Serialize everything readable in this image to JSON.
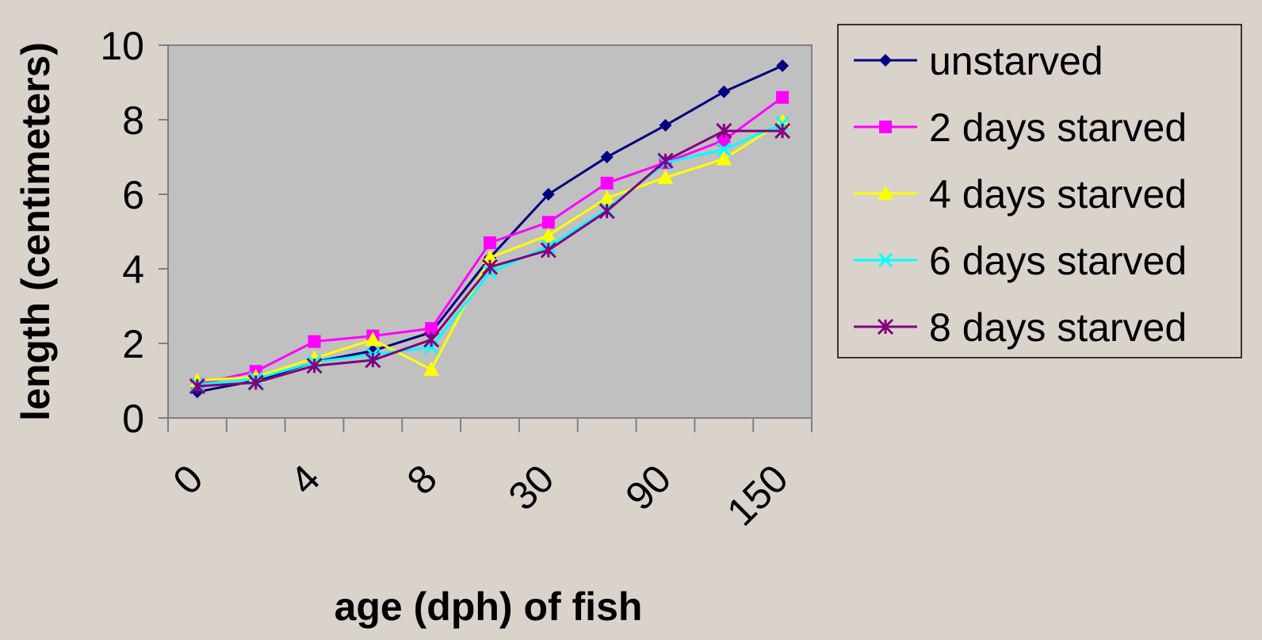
{
  "chart_data": {
    "type": "line",
    "xlabel": "age (dph) of fish",
    "ylabel": "length (centimeters)",
    "ylim": [
      0,
      10
    ],
    "yticks": [
      0,
      2,
      4,
      6,
      8,
      10
    ],
    "x_tick_labels": [
      "0",
      "4",
      "8",
      "30",
      "90",
      "150"
    ],
    "grid": false,
    "legend_position": "right",
    "plot_background": "#C0C0C0",
    "page_background": "#D9D3CC",
    "series": [
      {
        "name": "unstarved",
        "color": "#000080",
        "marker": "diamond",
        "values": [
          0.7,
          1.0,
          1.5,
          1.8,
          2.3,
          4.3,
          6.0,
          7.0,
          7.85,
          8.75,
          9.45
        ]
      },
      {
        "name": "2 days starved",
        "color": "#FF00FF",
        "marker": "square",
        "values": [
          0.9,
          1.25,
          2.05,
          2.2,
          2.4,
          4.7,
          5.25,
          6.3,
          6.85,
          7.45,
          8.6
        ]
      },
      {
        "name": "4 days starved",
        "color": "#FFFF00",
        "marker": "triangle",
        "values": [
          1.0,
          1.1,
          1.6,
          2.1,
          1.3,
          4.3,
          4.9,
          5.9,
          6.45,
          6.95,
          7.95
        ]
      },
      {
        "name": "6 days starved",
        "color": "#00FFFF",
        "marker": "x",
        "values": [
          0.9,
          1.05,
          1.5,
          1.7,
          1.9,
          3.9,
          4.6,
          5.6,
          6.85,
          7.2,
          7.9
        ]
      },
      {
        "name": "8 days starved",
        "color": "#800080",
        "marker": "asterisk",
        "values": [
          0.85,
          0.95,
          1.4,
          1.55,
          2.1,
          4.05,
          4.5,
          5.55,
          6.9,
          7.7,
          7.7
        ]
      }
    ]
  }
}
